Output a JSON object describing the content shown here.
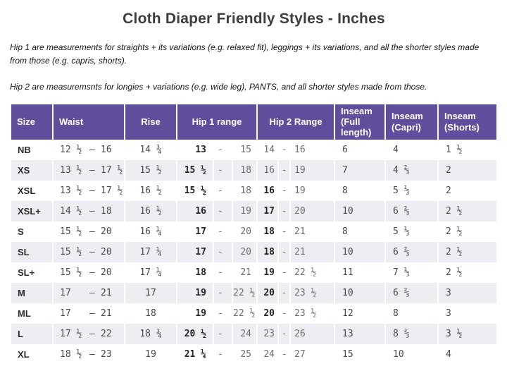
{
  "title": "Cloth Diaper Friendly Styles - Inches",
  "intro": {
    "hip1_note": "Hip 1 are measurements for straights + its variations (e.g. relaxed fit), leggings + its variations, and all the shorter styles made from those (e.g. capris, shorts).",
    "hip2_note": "Hip 2 are measuremsnts for longies + variations (e.g. wide leg), PANTS, and all shorter styles made from those."
  },
  "colors": {
    "header_bg": "#5F4E9C",
    "stripe": "#ECEEF1",
    "value_text": "#47494d",
    "light_text": "#6a6d71",
    "bold_text": "#242424"
  },
  "table": {
    "headers": {
      "size": "Size",
      "waist": "Waist",
      "rise": "Rise",
      "hip1": "Hip 1 range",
      "hip2": "Hip 2 Range",
      "inseam_full": "Inseam (Full length)",
      "inseam_capri": "Inseam (Capri)",
      "inseam_shorts": "Inseam (Shorts)"
    },
    "dashes": {
      "waist": "–",
      "hip": "-"
    },
    "rows": [
      {
        "size": "NB",
        "waist_min": "12 ½",
        "waist_max": "16",
        "rise": "14 ¾",
        "hip1_min": "13",
        "hip1_max": "15",
        "hip2_min": "14",
        "hip2_min_bold": false,
        "hip2_max": "16",
        "inseam_full": "6",
        "inseam_capri": "4",
        "inseam_shorts": "1 ½"
      },
      {
        "size": "XS",
        "waist_min": "13 ½",
        "waist_max": "17 ½",
        "rise": "15 ½",
        "hip1_min": "15 ½",
        "hip1_max": "18",
        "hip2_min": "16",
        "hip2_min_bold": false,
        "hip2_max": "19",
        "inseam_full": "7",
        "inseam_capri": "4 ⅔",
        "inseam_shorts": "2"
      },
      {
        "size": "XSL",
        "waist_min": "13 ½",
        "waist_max": "17 ½",
        "rise": "16 ½",
        "hip1_min": "15 ½",
        "hip1_max": "18",
        "hip2_min": "16",
        "hip2_min_bold": true,
        "hip2_max": "19",
        "inseam_full": "8",
        "inseam_capri": "5 ⅓",
        "inseam_shorts": "2"
      },
      {
        "size": "XSL+",
        "waist_min": "14 ½",
        "waist_max": "18",
        "rise": "16 ½",
        "hip1_min": "16",
        "hip1_max": "19",
        "hip2_min": "17",
        "hip2_min_bold": true,
        "hip2_max": "20",
        "inseam_full": "10",
        "inseam_capri": "6 ⅔",
        "inseam_shorts": "2 ½"
      },
      {
        "size": "S",
        "waist_min": "15 ½",
        "waist_max": "20",
        "rise": "16 ¼",
        "hip1_min": "17",
        "hip1_max": "20",
        "hip2_min": "18",
        "hip2_min_bold": true,
        "hip2_max": "21",
        "inseam_full": "8",
        "inseam_capri": "5 ⅓",
        "inseam_shorts": "2 ½"
      },
      {
        "size": "SL",
        "waist_min": "15 ½",
        "waist_max": "20",
        "rise": "17 ¼",
        "hip1_min": "17",
        "hip1_max": "20",
        "hip2_min": "18",
        "hip2_min_bold": true,
        "hip2_max": "21",
        "inseam_full": "10",
        "inseam_capri": "6 ⅔",
        "inseam_shorts": "2 ½"
      },
      {
        "size": "SL+",
        "waist_min": "15 ½",
        "waist_max": "20",
        "rise": "17 ¼",
        "hip1_min": "18",
        "hip1_max": "21",
        "hip2_min": "19",
        "hip2_min_bold": true,
        "hip2_max": "22 ½",
        "inseam_full": "11",
        "inseam_capri": "7 ⅓",
        "inseam_shorts": "2 ½"
      },
      {
        "size": "M",
        "waist_min": "17",
        "waist_max": "21",
        "rise": "17",
        "hip1_min": "19",
        "hip1_max": "22 ½",
        "hip2_min": "20",
        "hip2_min_bold": true,
        "hip2_max": "23 ½",
        "inseam_full": "10",
        "inseam_capri": "6 ⅔",
        "inseam_shorts": "3"
      },
      {
        "size": "ML",
        "waist_min": "17",
        "waist_max": "21",
        "rise": "18",
        "hip1_min": "19",
        "hip1_max": "22 ½",
        "hip2_min": "20",
        "hip2_min_bold": true,
        "hip2_max": "23 ½",
        "inseam_full": "12",
        "inseam_capri": "8",
        "inseam_shorts": "3"
      },
      {
        "size": "L",
        "waist_min": "17 ½",
        "waist_max": "22",
        "rise": "18 ¾",
        "hip1_min": "20 ½",
        "hip1_max": "24",
        "hip2_min": "23",
        "hip2_min_bold": false,
        "hip2_max": "26",
        "inseam_full": "13",
        "inseam_capri": "8 ⅔",
        "inseam_shorts": "3 ½"
      },
      {
        "size": "XL",
        "waist_min": "18 ½",
        "waist_max": "23",
        "rise": "19",
        "hip1_min": "21 ¼",
        "hip1_max": "25",
        "hip2_min": "24",
        "hip2_min_bold": false,
        "hip2_max": "27",
        "inseam_full": "15",
        "inseam_capri": "10",
        "inseam_shorts": "4"
      }
    ]
  }
}
